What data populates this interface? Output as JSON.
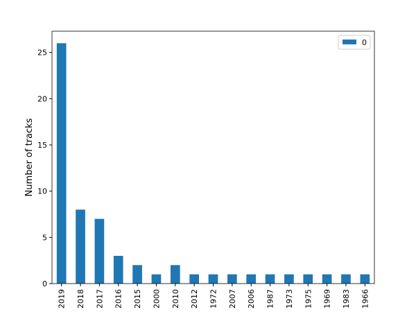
{
  "chart_data": {
    "type": "bar",
    "ylabel": "Number of tracks",
    "categories": [
      "2019",
      "2018",
      "2017",
      "2016",
      "2015",
      "2000",
      "2010",
      "2012",
      "1972",
      "2007",
      "2006",
      "1987",
      "1973",
      "1975",
      "1969",
      "1983",
      "1966"
    ],
    "series": [
      {
        "name": "0",
        "color": "#1f77b4",
        "values": [
          26,
          8,
          7,
          3,
          2,
          1,
          2,
          1,
          1,
          1,
          1,
          1,
          1,
          1,
          1,
          1,
          1
        ]
      }
    ],
    "ylim": [
      0,
      27.3
    ],
    "yticks": [
      0,
      5,
      10,
      15,
      20,
      25
    ],
    "grid": false,
    "legend": "upper right"
  }
}
